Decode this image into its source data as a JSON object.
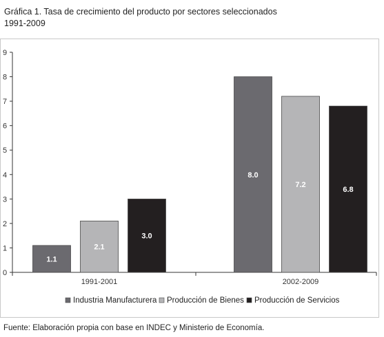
{
  "title_line1": "Gráfica 1. Tasa de crecimiento del producto por sectores seleccionados",
  "title_line2": "1991-2009",
  "source": "Fuente: Elaboración propia con base en INDEC y Ministerio de Economía.",
  "chart_data": {
    "type": "bar",
    "title": "Gráfica 1. Tasa de crecimiento del producto por sectores seleccionados 1991-2009",
    "xlabel": "",
    "ylabel": "",
    "ylim": [
      0,
      9
    ],
    "yticks": [
      "0",
      "1",
      "2",
      "3",
      "4",
      "5",
      "6",
      "7",
      "8",
      "9"
    ],
    "categories": [
      "1991-2001",
      "2002-2009"
    ],
    "series": [
      {
        "name": "Industria Manufacturera",
        "values": [
          1.1,
          8.0
        ],
        "labels": [
          "1.1",
          "8.0"
        ],
        "color": "#6b6a6f",
        "label_color": "#ffffff"
      },
      {
        "name": "Producción de Bienes",
        "values": [
          2.1,
          7.2
        ],
        "labels": [
          "2.1",
          "7.2"
        ],
        "color": "#b5b5b7",
        "label_color": "#ffffff"
      },
      {
        "name": "Producción de Servicios",
        "values": [
          3.0,
          6.8
        ],
        "labels": [
          "3.0",
          "6.8"
        ],
        "color": "#231f20",
        "label_color": "#ffffff"
      }
    ],
    "grid": false,
    "legend_position": "bottom"
  }
}
